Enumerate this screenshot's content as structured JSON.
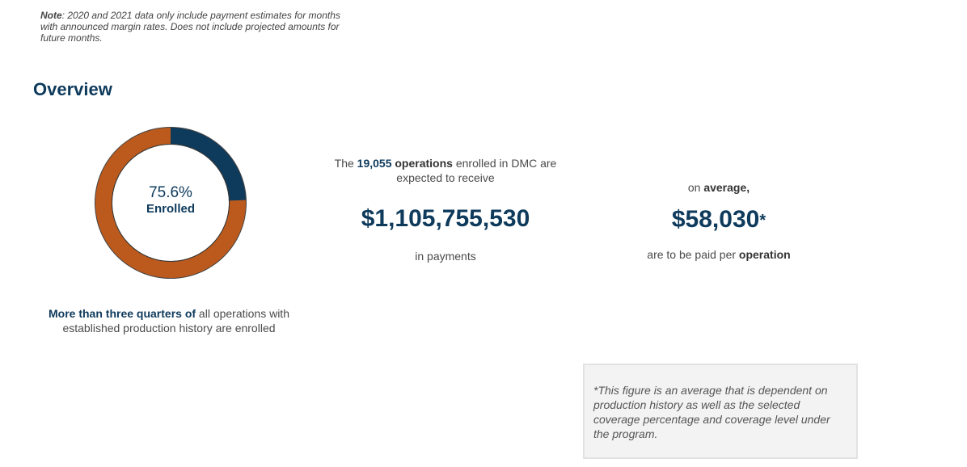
{
  "note": {
    "label": "Note",
    "text": ": 2020 and 2021 data only include payment estimates for months with announced margin rates. Does not include projected amounts for future months."
  },
  "overview": {
    "title": "Overview"
  },
  "donut": {
    "enrolled_fraction": 0.756,
    "percent_label": "75.6%",
    "center_label": "Enrolled",
    "colors": {
      "enrolled": "#bb5a1c",
      "not_enrolled": "#0e3a5c"
    }
  },
  "enroll_caption": {
    "highlight": "More than three quarters of",
    "rest": " all operations with established production history are enrolled"
  },
  "payments": {
    "intro_prefix": "The ",
    "operations_count": "19,055",
    "operations_word": " operations",
    "intro_suffix": " enrolled in DMC are expected to receive",
    "total_amount": "$1,105,755,530",
    "footer": "in payments"
  },
  "average": {
    "intro_prefix": "on ",
    "intro_bold": "average,",
    "amount": "$58,030",
    "asterisk": "*",
    "footer_prefix": "are to be paid per ",
    "footer_bold": "operation"
  },
  "footnote": {
    "text": "*This figure is an average that is dependent on production history as well as the selected coverage percentage and coverage level under the program."
  }
}
